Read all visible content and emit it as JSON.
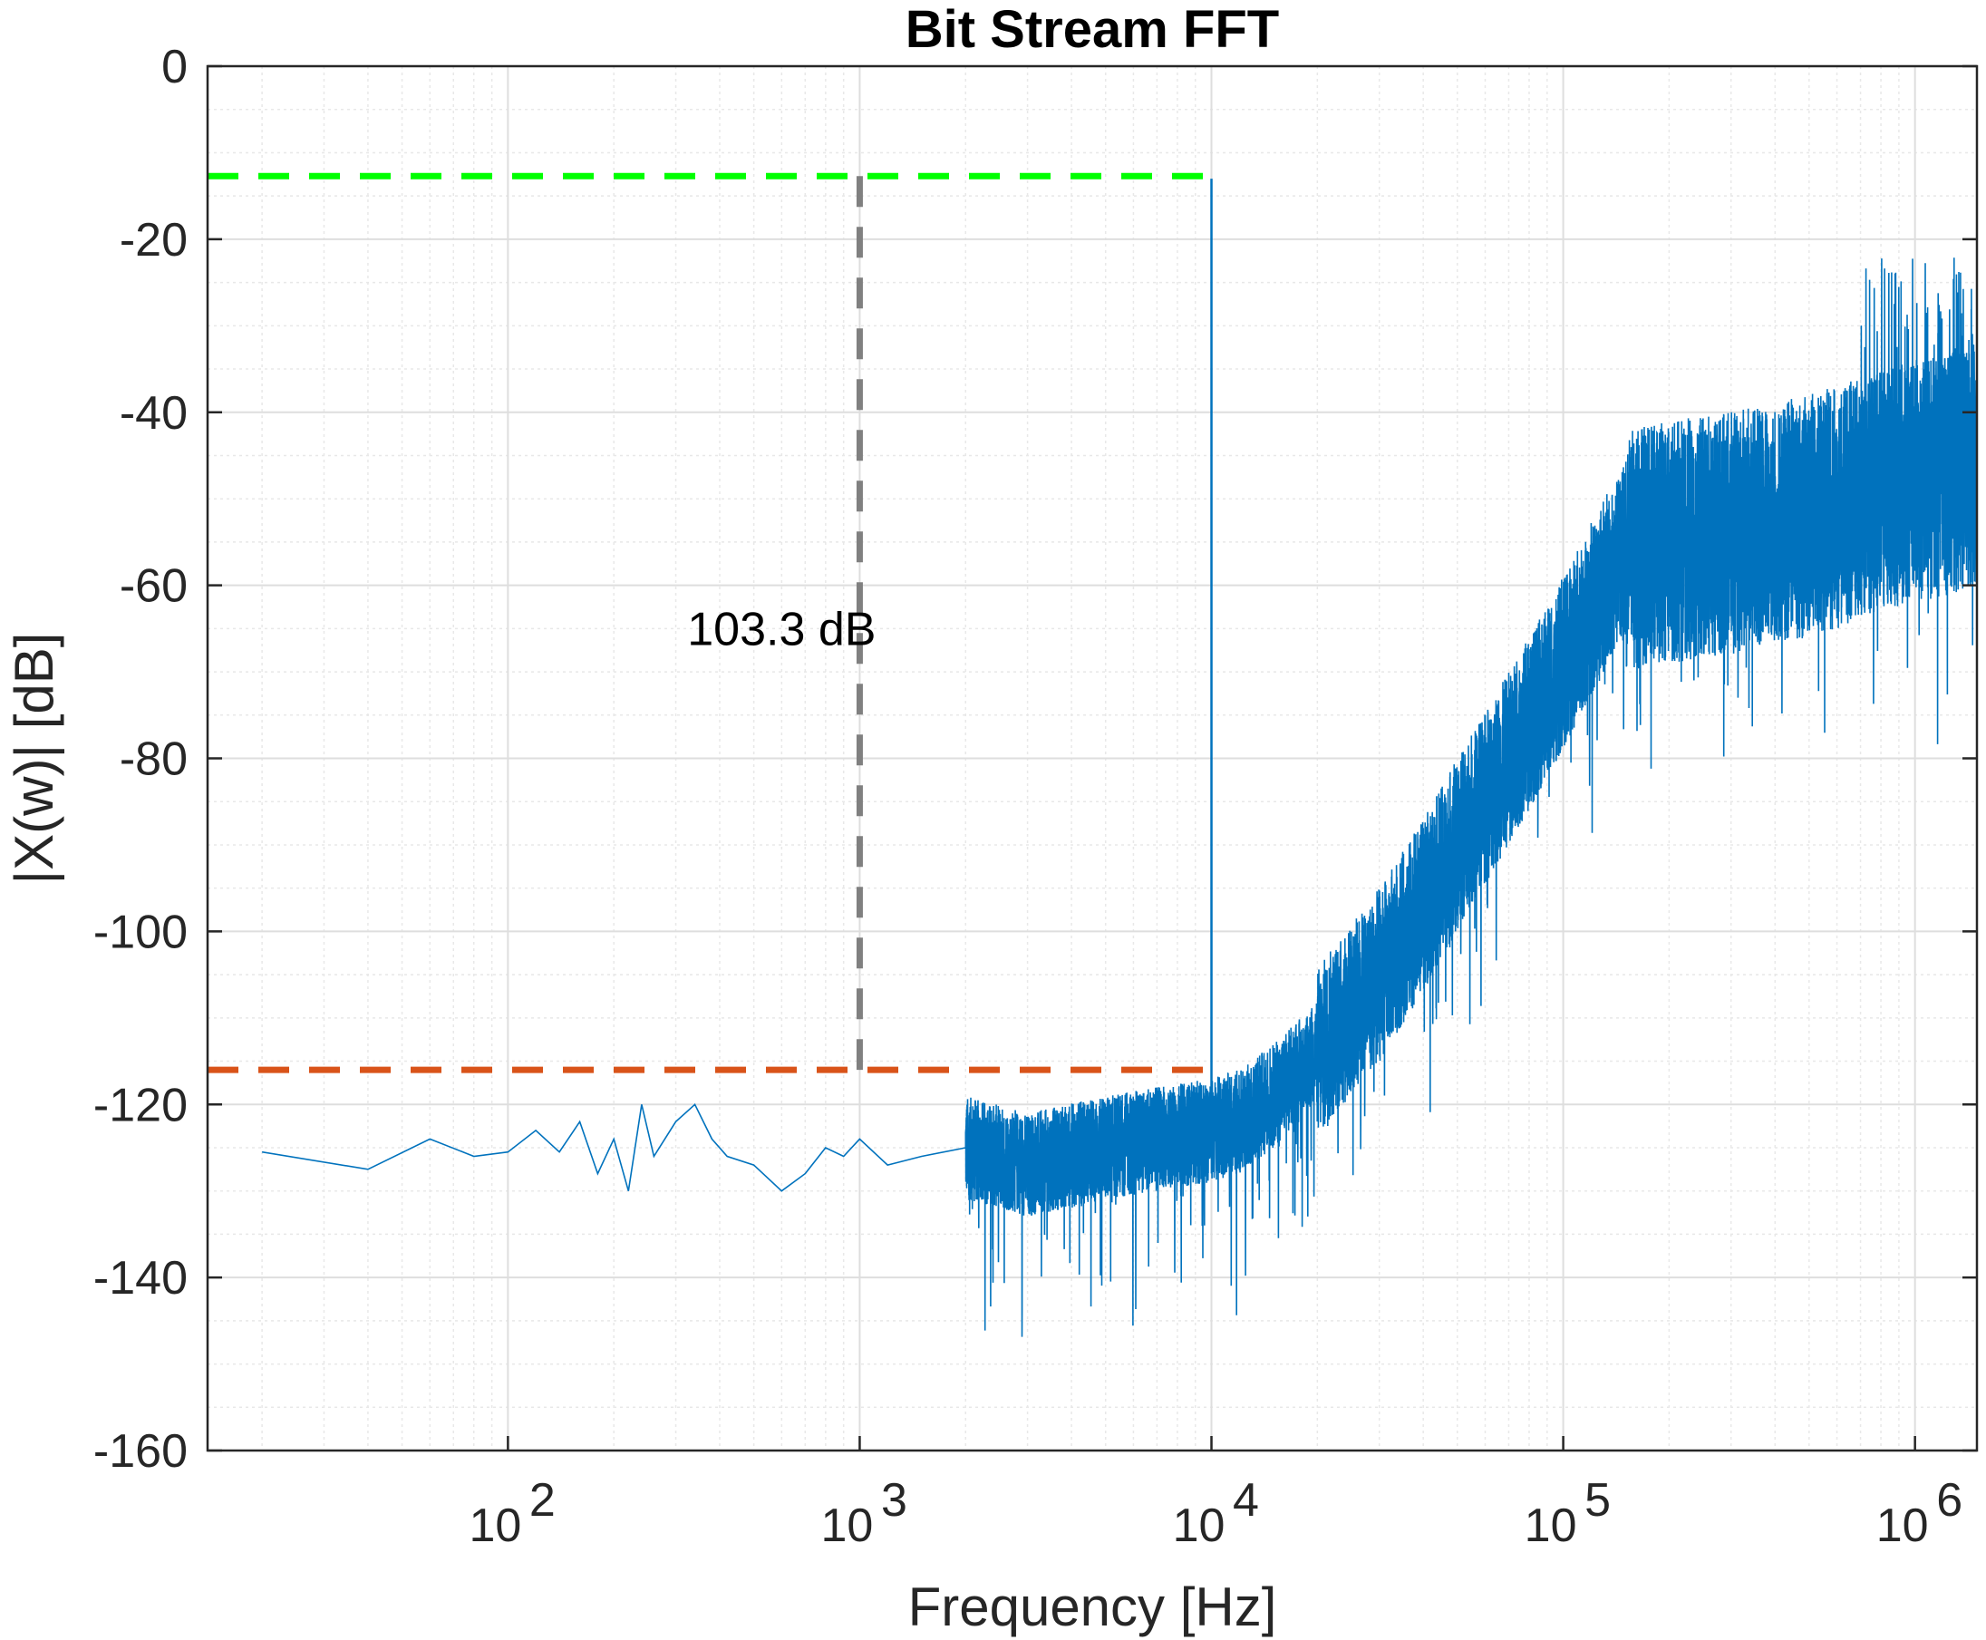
{
  "chart_data": {
    "type": "line",
    "title": "Bit Stream FFT",
    "xlabel": "Frequency [Hz]",
    "ylabel": "|X(w)| [dB]",
    "x_scale": "log",
    "xlim": [
      14,
      1500000
    ],
    "ylim": [
      -160,
      0
    ],
    "x_ticks": [
      {
        "value": 100,
        "base": "10",
        "exp": "2"
      },
      {
        "value": 1000,
        "base": "10",
        "exp": "3"
      },
      {
        "value": 10000,
        "base": "10",
        "exp": "4"
      },
      {
        "value": 100000,
        "base": "10",
        "exp": "5"
      },
      {
        "value": 1000000,
        "base": "10",
        "exp": "6"
      }
    ],
    "y_ticks": [
      {
        "value": 0,
        "label": "0"
      },
      {
        "value": -20,
        "label": "-20"
      },
      {
        "value": -40,
        "label": "-40"
      },
      {
        "value": -60,
        "label": "-60"
      },
      {
        "value": -80,
        "label": "-80"
      },
      {
        "value": -100,
        "label": "-100"
      },
      {
        "value": -120,
        "label": "-120"
      },
      {
        "value": -140,
        "label": "-140"
      },
      {
        "value": -160,
        "label": "-160"
      }
    ],
    "grid": true,
    "minor_grid": true,
    "colors": {
      "spectrum": "#0072BD",
      "signal_level": "#00FF00",
      "noise_floor": "#D95319",
      "dynamic_range": "#808080"
    },
    "series": [
      {
        "role": "spectrum",
        "x": [
          20,
          40,
          60,
          80,
          100,
          120,
          140,
          160,
          180,
          200,
          220,
          240,
          260,
          300,
          340,
          380,
          420,
          500,
          600,
          700,
          800,
          900,
          1000,
          1200,
          1500,
          2000,
          3000,
          5000,
          7000,
          10000,
          10000,
          10000,
          12000,
          15000,
          20000,
          30000,
          40000,
          50000,
          70000,
          100000,
          130000,
          150000,
          200000,
          300000,
          500000,
          700000,
          800000,
          1000000,
          1300000,
          1500000
        ],
        "y": [
          -125.5,
          -127.5,
          -124,
          -126,
          -125.5,
          -123,
          -125.5,
          -122,
          -128,
          -124,
          -130,
          -120,
          -126,
          -122,
          -120,
          -124,
          -126,
          -127,
          -130,
          -128,
          -125,
          -126,
          -124,
          -127,
          -126,
          -125,
          -127,
          -125,
          -124,
          -123,
          -13,
          -123,
          -122,
          -119,
          -114,
          -105,
          -97,
          -90,
          -80,
          -69,
          -60,
          -56,
          -55,
          -54,
          -52,
          -50,
          -49,
          -48,
          -47,
          -46
        ]
      },
      {
        "role": "signal_level",
        "x": [
          14,
          10000
        ],
        "y": [
          -12.7,
          -12.7
        ]
      },
      {
        "role": "noise_floor",
        "x": [
          14,
          10000
        ],
        "y": [
          -116,
          -116
        ]
      },
      {
        "role": "dynamic_range",
        "x": [
          1000,
          1000
        ],
        "y": [
          -12.7,
          -116
        ]
      }
    ],
    "annotations": [
      {
        "text": "103.3 dB",
        "x": 600,
        "y": -65
      }
    ]
  }
}
